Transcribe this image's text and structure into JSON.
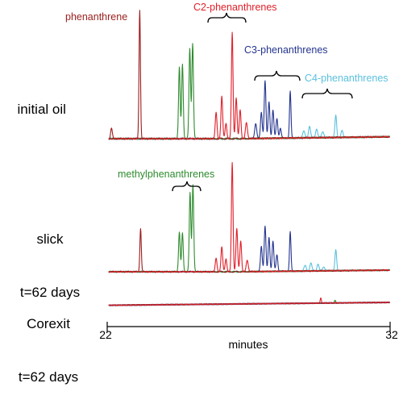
{
  "chart_data": {
    "type": "line",
    "x_axis": {
      "label": "minutes",
      "range": [
        22,
        32
      ],
      "ticks": [
        22,
        32
      ]
    },
    "panels": [
      {
        "label_lines": [
          "initial oil"
        ]
      },
      {
        "label_lines": [
          "slick",
          "t=62 days"
        ]
      },
      {
        "label_lines": [
          "Corexit",
          "t=62 days"
        ]
      }
    ],
    "compound_groups": [
      {
        "name": "phenanthrene",
        "color": "#9b1c1c"
      },
      {
        "name": "methylphenanthrenes",
        "color": "#2e8b2e"
      },
      {
        "name": "C2-phenanthrenes",
        "color": "#e0202a"
      },
      {
        "name": "C3-phenanthrenes",
        "color": "#25358f"
      },
      {
        "name": "C4-phenanthrenes",
        "color": "#5bc0de"
      }
    ],
    "peaks": {
      "initial": [
        {
          "group": 0,
          "t": 22.15,
          "h": 0.08,
          "w": 0.03
        },
        {
          "group": 0,
          "t": 23.15,
          "h": 1.0,
          "w": 0.025
        },
        {
          "group": 1,
          "t": 24.55,
          "h": 0.55,
          "w": 0.028
        },
        {
          "group": 1,
          "t": 24.66,
          "h": 0.58,
          "w": 0.028
        },
        {
          "group": 1,
          "t": 24.92,
          "h": 0.7,
          "w": 0.028
        },
        {
          "group": 1,
          "t": 25.02,
          "h": 0.74,
          "w": 0.028
        },
        {
          "group": 2,
          "t": 25.85,
          "h": 0.2,
          "w": 0.03
        },
        {
          "group": 2,
          "t": 26.05,
          "h": 0.33,
          "w": 0.03
        },
        {
          "group": 2,
          "t": 26.2,
          "h": 0.12,
          "w": 0.03
        },
        {
          "group": 2,
          "t": 26.42,
          "h": 0.82,
          "w": 0.028
        },
        {
          "group": 2,
          "t": 26.56,
          "h": 0.32,
          "w": 0.03
        },
        {
          "group": 2,
          "t": 26.7,
          "h": 0.22,
          "w": 0.03
        },
        {
          "group": 2,
          "t": 26.92,
          "h": 0.12,
          "w": 0.035
        },
        {
          "group": 3,
          "t": 27.25,
          "h": 0.12,
          "w": 0.035
        },
        {
          "group": 3,
          "t": 27.45,
          "h": 0.2,
          "w": 0.03
        },
        {
          "group": 3,
          "t": 27.58,
          "h": 0.45,
          "w": 0.03
        },
        {
          "group": 3,
          "t": 27.72,
          "h": 0.28,
          "w": 0.03
        },
        {
          "group": 3,
          "t": 27.86,
          "h": 0.22,
          "w": 0.03
        },
        {
          "group": 3,
          "t": 28.0,
          "h": 0.15,
          "w": 0.03
        },
        {
          "group": 3,
          "t": 28.12,
          "h": 0.08,
          "w": 0.03
        },
        {
          "group": 3,
          "t": 28.47,
          "h": 0.36,
          "w": 0.025
        },
        {
          "group": 4,
          "t": 28.95,
          "h": 0.05,
          "w": 0.04
        },
        {
          "group": 4,
          "t": 29.15,
          "h": 0.09,
          "w": 0.035
        },
        {
          "group": 4,
          "t": 29.4,
          "h": 0.07,
          "w": 0.035
        },
        {
          "group": 4,
          "t": 29.62,
          "h": 0.05,
          "w": 0.04
        },
        {
          "group": 4,
          "t": 30.08,
          "h": 0.17,
          "w": 0.03
        },
        {
          "group": 4,
          "t": 30.3,
          "h": 0.05,
          "w": 0.035
        }
      ],
      "slick": [
        {
          "group": 0,
          "t": 23.18,
          "h": 0.4,
          "w": 0.025
        },
        {
          "group": 1,
          "t": 24.55,
          "h": 0.36,
          "w": 0.028
        },
        {
          "group": 1,
          "t": 24.66,
          "h": 0.36,
          "w": 0.028
        },
        {
          "group": 1,
          "t": 24.93,
          "h": 0.73,
          "w": 0.028
        },
        {
          "group": 1,
          "t": 25.03,
          "h": 0.8,
          "w": 0.028
        },
        {
          "group": 2,
          "t": 25.85,
          "h": 0.12,
          "w": 0.03
        },
        {
          "group": 2,
          "t": 26.05,
          "h": 0.23,
          "w": 0.03
        },
        {
          "group": 2,
          "t": 26.2,
          "h": 0.12,
          "w": 0.03
        },
        {
          "group": 2,
          "t": 26.42,
          "h": 1.0,
          "w": 0.028
        },
        {
          "group": 2,
          "t": 26.58,
          "h": 0.4,
          "w": 0.03
        },
        {
          "group": 2,
          "t": 26.72,
          "h": 0.28,
          "w": 0.03
        },
        {
          "group": 2,
          "t": 26.95,
          "h": 0.1,
          "w": 0.035
        },
        {
          "group": 3,
          "t": 27.45,
          "h": 0.23,
          "w": 0.03
        },
        {
          "group": 3,
          "t": 27.58,
          "h": 0.42,
          "w": 0.03
        },
        {
          "group": 3,
          "t": 27.72,
          "h": 0.31,
          "w": 0.03
        },
        {
          "group": 3,
          "t": 27.86,
          "h": 0.28,
          "w": 0.03
        },
        {
          "group": 3,
          "t": 28.0,
          "h": 0.15,
          "w": 0.03
        },
        {
          "group": 3,
          "t": 28.47,
          "h": 0.36,
          "w": 0.025
        },
        {
          "group": 4,
          "t": 29.0,
          "h": 0.05,
          "w": 0.04
        },
        {
          "group": 4,
          "t": 29.2,
          "h": 0.07,
          "w": 0.035
        },
        {
          "group": 4,
          "t": 29.45,
          "h": 0.06,
          "w": 0.035
        },
        {
          "group": 4,
          "t": 29.65,
          "h": 0.04,
          "w": 0.04
        },
        {
          "group": 4,
          "t": 30.08,
          "h": 0.19,
          "w": 0.03
        }
      ],
      "corexit": [
        {
          "group": 2,
          "t": 29.55,
          "h": 0.1,
          "w": 0.02
        },
        {
          "group": 1,
          "t": 30.05,
          "h": 0.05,
          "w": 0.02
        }
      ]
    }
  },
  "axis_texts": {
    "start": "22",
    "end": "32",
    "title": "minutes"
  }
}
